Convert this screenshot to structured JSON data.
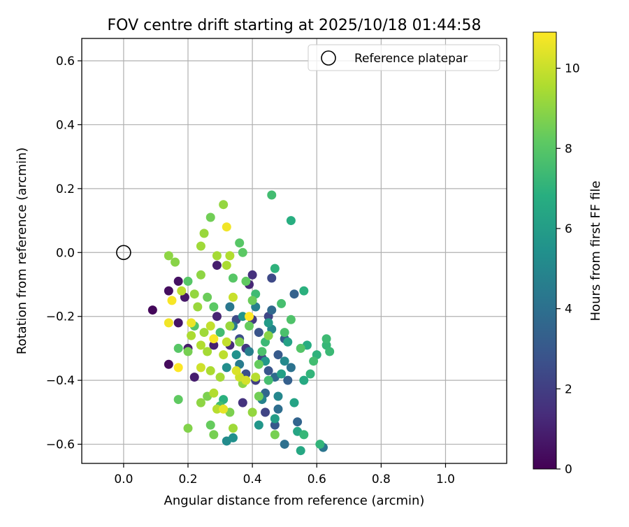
{
  "chart_data": {
    "type": "scatter",
    "title": "FOV centre drift starting at 2025/10/18 01:44:58",
    "xlabel": "Angular distance from reference (arcmin)",
    "ylabel": "Rotation from reference (arcmin)",
    "xlim": [
      -0.13,
      1.19
    ],
    "ylim": [
      -0.66,
      0.67
    ],
    "grid": true,
    "xticks": [
      0.0,
      0.2,
      0.4,
      0.6,
      0.8,
      1.0
    ],
    "xtick_labels": [
      "0.0",
      "0.2",
      "0.4",
      "0.6",
      "0.8",
      "1.0"
    ],
    "yticks": [
      0.6,
      0.4,
      0.2,
      0.0,
      -0.2,
      -0.4,
      -0.6
    ],
    "ytick_labels": [
      "0.6",
      "0.4",
      "0.2",
      "0.0",
      "−0.2",
      "−0.4",
      "−0.6"
    ],
    "legend": {
      "position": "top-right",
      "label": "Reference platepar"
    },
    "reference_point": {
      "x": 0.0,
      "y": 0.0
    },
    "colorbar": {
      "label": "Hours from first FF file",
      "min": 0,
      "max": 10.9,
      "ticks": [
        0,
        2,
        4,
        6,
        8,
        10
      ],
      "tick_labels": [
        "0",
        "2",
        "4",
        "6",
        "8",
        "10"
      ],
      "colormap": "viridis"
    },
    "points": [
      {
        "x": 0.09,
        "y": -0.18,
        "h": 0.2
      },
      {
        "x": 0.14,
        "y": -0.35,
        "h": 0.3
      },
      {
        "x": 0.14,
        "y": -0.12,
        "h": 0.4
      },
      {
        "x": 0.17,
        "y": -0.09,
        "h": 0.5
      },
      {
        "x": 0.17,
        "y": -0.22,
        "h": 0.6
      },
      {
        "x": 0.19,
        "y": -0.14,
        "h": 0.7
      },
      {
        "x": 0.2,
        "y": -0.3,
        "h": 0.8
      },
      {
        "x": 0.22,
        "y": -0.39,
        "h": 0.9
      },
      {
        "x": 0.28,
        "y": -0.29,
        "h": 1.0
      },
      {
        "x": 0.29,
        "y": -0.2,
        "h": 1.1
      },
      {
        "x": 0.29,
        "y": -0.04,
        "h": 0.9
      },
      {
        "x": 0.39,
        "y": -0.1,
        "h": 1.2
      },
      {
        "x": 0.33,
        "y": -0.29,
        "h": 1.3
      },
      {
        "x": 0.37,
        "y": -0.47,
        "h": 1.6
      },
      {
        "x": 0.38,
        "y": -0.3,
        "h": 1.8
      },
      {
        "x": 0.4,
        "y": -0.21,
        "h": 1.9
      },
      {
        "x": 0.41,
        "y": -0.4,
        "h": 2.0
      },
      {
        "x": 0.43,
        "y": -0.33,
        "h": 2.1
      },
      {
        "x": 0.44,
        "y": -0.5,
        "h": 2.2
      },
      {
        "x": 0.45,
        "y": -0.2,
        "h": 2.3
      },
      {
        "x": 0.46,
        "y": -0.08,
        "h": 2.4
      },
      {
        "x": 0.35,
        "y": -0.21,
        "h": 2.5
      },
      {
        "x": 0.36,
        "y": -0.27,
        "h": 2.6
      },
      {
        "x": 0.38,
        "y": -0.38,
        "h": 2.7
      },
      {
        "x": 0.42,
        "y": -0.25,
        "h": 2.8
      },
      {
        "x": 0.45,
        "y": -0.37,
        "h": 2.9
      },
      {
        "x": 0.47,
        "y": -0.54,
        "h": 3.0
      },
      {
        "x": 0.48,
        "y": -0.32,
        "h": 3.1
      },
      {
        "x": 0.5,
        "y": -0.27,
        "h": 3.2
      },
      {
        "x": 0.51,
        "y": -0.4,
        "h": 3.3
      },
      {
        "x": 0.53,
        "y": -0.13,
        "h": 3.4
      },
      {
        "x": 0.54,
        "y": -0.53,
        "h": 3.5
      },
      {
        "x": 0.44,
        "y": -0.44,
        "h": 3.6
      },
      {
        "x": 0.46,
        "y": -0.18,
        "h": 3.7
      },
      {
        "x": 0.47,
        "y": -0.39,
        "h": 3.8
      },
      {
        "x": 0.48,
        "y": -0.49,
        "h": 3.9
      },
      {
        "x": 0.5,
        "y": -0.6,
        "h": 4.0
      },
      {
        "x": 0.52,
        "y": -0.36,
        "h": 4.1
      },
      {
        "x": 0.62,
        "y": -0.61,
        "h": 4.2
      },
      {
        "x": 0.33,
        "y": -0.17,
        "h": 4.3
      },
      {
        "x": 0.34,
        "y": -0.23,
        "h": 4.4
      },
      {
        "x": 0.36,
        "y": -0.35,
        "h": 4.5
      },
      {
        "x": 0.39,
        "y": -0.31,
        "h": 4.6
      },
      {
        "x": 0.41,
        "y": -0.17,
        "h": 4.7
      },
      {
        "x": 0.43,
        "y": -0.46,
        "h": 4.8
      },
      {
        "x": 0.46,
        "y": -0.24,
        "h": 4.9
      },
      {
        "x": 0.48,
        "y": -0.45,
        "h": 5.0
      },
      {
        "x": 0.5,
        "y": -0.34,
        "h": 5.1
      },
      {
        "x": 0.32,
        "y": -0.59,
        "h": 5.2
      },
      {
        "x": 0.32,
        "y": -0.36,
        "h": 5.3
      },
      {
        "x": 0.34,
        "y": -0.58,
        "h": 5.4
      },
      {
        "x": 0.35,
        "y": -0.32,
        "h": 5.5
      },
      {
        "x": 0.37,
        "y": -0.2,
        "h": 5.6
      },
      {
        "x": 0.42,
        "y": -0.54,
        "h": 5.7
      },
      {
        "x": 0.44,
        "y": -0.34,
        "h": 5.8
      },
      {
        "x": 0.45,
        "y": -0.22,
        "h": 5.9
      },
      {
        "x": 0.47,
        "y": -0.52,
        "h": 6.0
      },
      {
        "x": 0.49,
        "y": -0.38,
        "h": 6.1
      },
      {
        "x": 0.51,
        "y": -0.28,
        "h": 6.2
      },
      {
        "x": 0.53,
        "y": -0.47,
        "h": 6.3
      },
      {
        "x": 0.54,
        "y": -0.56,
        "h": 6.4
      },
      {
        "x": 0.55,
        "y": -0.62,
        "h": 6.5
      },
      {
        "x": 0.56,
        "y": -0.4,
        "h": 6.6
      },
      {
        "x": 0.57,
        "y": -0.29,
        "h": 6.7
      },
      {
        "x": 0.52,
        "y": 0.1,
        "h": 6.8
      },
      {
        "x": 0.56,
        "y": -0.12,
        "h": 6.9
      },
      {
        "x": 0.6,
        "y": -0.32,
        "h": 7.0
      },
      {
        "x": 0.61,
        "y": -0.6,
        "h": 7.1
      },
      {
        "x": 0.63,
        "y": -0.29,
        "h": 7.2
      },
      {
        "x": 0.64,
        "y": -0.31,
        "h": 7.3
      },
      {
        "x": 0.63,
        "y": -0.27,
        "h": 7.4
      },
      {
        "x": 0.46,
        "y": 0.18,
        "h": 7.5
      },
      {
        "x": 0.47,
        "y": -0.05,
        "h": 7.0
      },
      {
        "x": 0.49,
        "y": -0.16,
        "h": 7.6
      },
      {
        "x": 0.5,
        "y": -0.25,
        "h": 7.7
      },
      {
        "x": 0.52,
        "y": -0.21,
        "h": 7.8
      },
      {
        "x": 0.55,
        "y": -0.3,
        "h": 7.9
      },
      {
        "x": 0.56,
        "y": -0.57,
        "h": 7.2
      },
      {
        "x": 0.58,
        "y": -0.38,
        "h": 7.1
      },
      {
        "x": 0.59,
        "y": -0.34,
        "h": 7.5
      },
      {
        "x": 0.44,
        "y": -0.28,
        "h": 7.3
      },
      {
        "x": 0.45,
        "y": -0.4,
        "h": 7.6
      },
      {
        "x": 0.41,
        "y": -0.13,
        "h": 7.4
      },
      {
        "x": 0.43,
        "y": -0.31,
        "h": 7.7
      },
      {
        "x": 0.3,
        "y": -0.48,
        "h": 7.5
      },
      {
        "x": 0.31,
        "y": -0.46,
        "h": 6.9
      },
      {
        "x": 0.36,
        "y": 0.03,
        "h": 8.0
      },
      {
        "x": 0.37,
        "y": 0.0,
        "h": 8.1
      },
      {
        "x": 0.38,
        "y": -0.09,
        "h": 8.2
      },
      {
        "x": 0.39,
        "y": -0.23,
        "h": 8.3
      },
      {
        "x": 0.4,
        "y": -0.15,
        "h": 8.4
      },
      {
        "x": 0.42,
        "y": -0.45,
        "h": 8.5
      },
      {
        "x": 0.47,
        "y": -0.57,
        "h": 8.6
      },
      {
        "x": 0.33,
        "y": -0.5,
        "h": 8.7
      },
      {
        "x": 0.17,
        "y": -0.46,
        "h": 8.2
      },
      {
        "x": 0.2,
        "y": -0.55,
        "h": 8.8
      },
      {
        "x": 0.16,
        "y": -0.03,
        "h": 8.9
      },
      {
        "x": 0.14,
        "y": -0.01,
        "h": 9.0
      },
      {
        "x": 0.27,
        "y": 0.11,
        "h": 8.5
      },
      {
        "x": 0.31,
        "y": 0.15,
        "h": 9.1
      },
      {
        "x": 0.25,
        "y": 0.06,
        "h": 9.2
      },
      {
        "x": 0.24,
        "y": 0.02,
        "h": 9.3
      },
      {
        "x": 0.29,
        "y": -0.01,
        "h": 9.4
      },
      {
        "x": 0.32,
        "y": -0.04,
        "h": 9.5
      },
      {
        "x": 0.33,
        "y": -0.01,
        "h": 9.6
      },
      {
        "x": 0.24,
        "y": -0.07,
        "h": 9.0
      },
      {
        "x": 0.22,
        "y": -0.13,
        "h": 9.1
      },
      {
        "x": 0.23,
        "y": -0.17,
        "h": 9.2
      },
      {
        "x": 0.25,
        "y": -0.25,
        "h": 9.3
      },
      {
        "x": 0.26,
        "y": -0.31,
        "h": 9.4
      },
      {
        "x": 0.27,
        "y": -0.37,
        "h": 9.5
      },
      {
        "x": 0.28,
        "y": -0.44,
        "h": 9.6
      },
      {
        "x": 0.29,
        "y": -0.49,
        "h": 9.7
      },
      {
        "x": 0.31,
        "y": -0.32,
        "h": 9.8
      },
      {
        "x": 0.32,
        "y": -0.28,
        "h": 9.9
      },
      {
        "x": 0.34,
        "y": -0.14,
        "h": 10.0
      },
      {
        "x": 0.36,
        "y": -0.39,
        "h": 10.1
      },
      {
        "x": 0.38,
        "y": -0.4,
        "h": 10.2
      },
      {
        "x": 0.39,
        "y": -0.2,
        "h": 10.9
      },
      {
        "x": 0.15,
        "y": -0.15,
        "h": 10.8
      },
      {
        "x": 0.14,
        "y": -0.22,
        "h": 10.7
      },
      {
        "x": 0.17,
        "y": -0.36,
        "h": 10.9
      },
      {
        "x": 0.21,
        "y": -0.22,
        "h": 10.6
      },
      {
        "x": 0.28,
        "y": -0.27,
        "h": 10.8
      },
      {
        "x": 0.31,
        "y": -0.49,
        "h": 10.5
      },
      {
        "x": 0.32,
        "y": 0.08,
        "h": 10.7
      },
      {
        "x": 0.17,
        "y": -0.3,
        "h": 8.0
      },
      {
        "x": 0.2,
        "y": -0.31,
        "h": 8.6
      },
      {
        "x": 0.24,
        "y": -0.47,
        "h": 9.0
      },
      {
        "x": 0.26,
        "y": -0.45,
        "h": 8.7
      },
      {
        "x": 0.27,
        "y": -0.23,
        "h": 9.9
      },
      {
        "x": 0.3,
        "y": -0.39,
        "h": 9.4
      },
      {
        "x": 0.35,
        "y": -0.37,
        "h": 10.3
      },
      {
        "x": 0.37,
        "y": -0.41,
        "h": 9.0
      },
      {
        "x": 0.4,
        "y": -0.5,
        "h": 9.1
      },
      {
        "x": 0.42,
        "y": -0.35,
        "h": 8.3
      },
      {
        "x": 0.45,
        "y": -0.26,
        "h": 8.9
      },
      {
        "x": 0.26,
        "y": -0.14,
        "h": 8.4
      },
      {
        "x": 0.2,
        "y": -0.09,
        "h": 8.0
      },
      {
        "x": 0.21,
        "y": -0.26,
        "h": 9.5
      },
      {
        "x": 0.24,
        "y": -0.36,
        "h": 10.1
      },
      {
        "x": 0.24,
        "y": -0.29,
        "h": 9.6
      },
      {
        "x": 0.18,
        "y": -0.12,
        "h": 9.8
      },
      {
        "x": 0.33,
        "y": -0.23,
        "h": 9.2
      },
      {
        "x": 0.36,
        "y": -0.28,
        "h": 8.8
      },
      {
        "x": 0.41,
        "y": -0.39,
        "h": 9.7
      },
      {
        "x": 0.27,
        "y": -0.54,
        "h": 8.3
      },
      {
        "x": 0.34,
        "y": -0.55,
        "h": 9.3
      },
      {
        "x": 0.28,
        "y": -0.57,
        "h": 8.6
      },
      {
        "x": 0.22,
        "y": -0.23,
        "h": 7.9
      },
      {
        "x": 0.28,
        "y": -0.17,
        "h": 8.1
      },
      {
        "x": 0.3,
        "y": -0.25,
        "h": 7.5
      },
      {
        "x": 0.34,
        "y": -0.08,
        "h": 8.0
      },
      {
        "x": 0.4,
        "y": -0.07,
        "h": 1.5
      }
    ]
  }
}
